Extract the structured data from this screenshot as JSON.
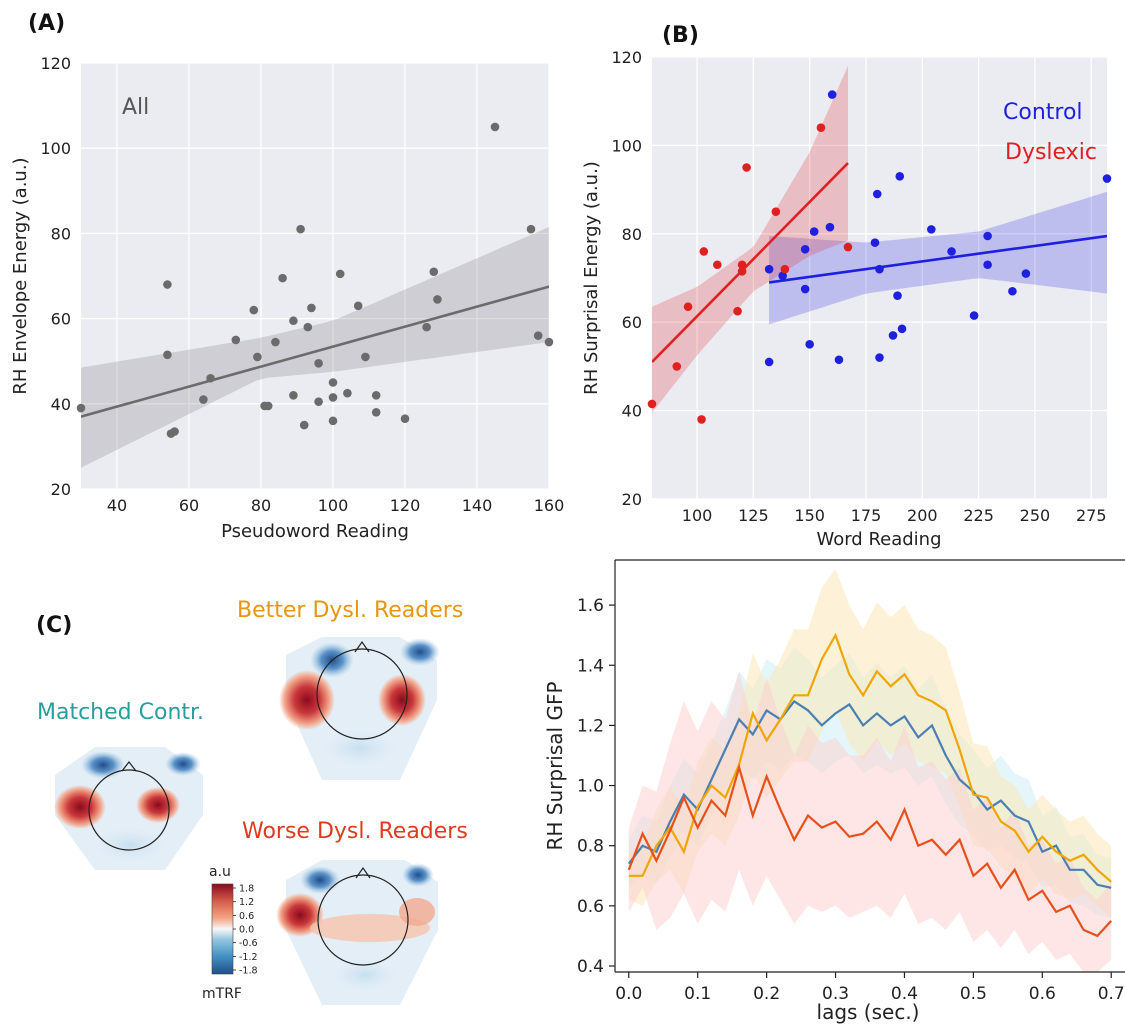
{
  "panels": {
    "a_label": "(A)",
    "b_label": "(B)",
    "c_label": "(C)"
  },
  "chart_data": [
    {
      "id": "A",
      "type": "scatter",
      "xlabel": "Pseudoword Reading",
      "ylabel": "RH Envelope Energy (a.u.)",
      "xlim": [
        30,
        160
      ],
      "ylim": [
        20,
        120
      ],
      "xticks": [
        40,
        60,
        80,
        100,
        120,
        140,
        160
      ],
      "yticks": [
        20,
        40,
        60,
        80,
        100,
        120
      ],
      "grid": true,
      "annotation": "All",
      "series": [
        {
          "color": "#6b6b6b",
          "points": [
            [
              30,
              39
            ],
            [
              54,
              68
            ],
            [
              54,
              51.5
            ],
            [
              55,
              33
            ],
            [
              56,
              33.5
            ],
            [
              64,
              41
            ],
            [
              66,
              46
            ],
            [
              73,
              55
            ],
            [
              78,
              62
            ],
            [
              79,
              51
            ],
            [
              81,
              39.5
            ],
            [
              82,
              39.5
            ],
            [
              84,
              54.5
            ],
            [
              86,
              69.5
            ],
            [
              89,
              59.5
            ],
            [
              89,
              42
            ],
            [
              91,
              81
            ],
            [
              92,
              35
            ],
            [
              93,
              58
            ],
            [
              94,
              62.5
            ],
            [
              96,
              49.5
            ],
            [
              96,
              40.5
            ],
            [
              100,
              45
            ],
            [
              100,
              41.5
            ],
            [
              100,
              36
            ],
            [
              102,
              70.5
            ],
            [
              104,
              42.5
            ],
            [
              107,
              63
            ],
            [
              109,
              51
            ],
            [
              112,
              42
            ],
            [
              112,
              38
            ],
            [
              120,
              36.5
            ],
            [
              126,
              58
            ],
            [
              128,
              71
            ],
            [
              129,
              64.5
            ],
            [
              145,
              105
            ],
            [
              155,
              81
            ],
            [
              157,
              56
            ],
            [
              160,
              54.5
            ]
          ],
          "fit": {
            "x": [
              30,
              160
            ],
            "y": [
              37,
              67.5
            ]
          },
          "ci": {
            "x": [
              30,
              80,
              100,
              160
            ],
            "upper": [
              48.5,
              55.5,
              59.5,
              81.5
            ],
            "lower": [
              25,
              46,
              47.5,
              54.5
            ]
          }
        }
      ]
    },
    {
      "id": "B",
      "type": "scatter",
      "xlabel": "Word Reading",
      "ylabel": "RH Surprisal Energy (a.u.)",
      "xlim": [
        80,
        282
      ],
      "ylim": [
        20,
        120
      ],
      "xticks": [
        100,
        125,
        150,
        175,
        200,
        225,
        250,
        275
      ],
      "yticks": [
        20,
        40,
        60,
        80,
        100,
        120
      ],
      "grid": true,
      "series": [
        {
          "name": "Control",
          "color": "#1f1fe0",
          "points": [
            [
              132,
              72
            ],
            [
              132,
              51
            ],
            [
              138,
              70.5
            ],
            [
              148,
              67.5
            ],
            [
              148,
              76.5
            ],
            [
              150,
              55
            ],
            [
              152,
              80.5
            ],
            [
              159,
              81.5
            ],
            [
              160,
              111.5
            ],
            [
              163,
              51.5
            ],
            [
              179,
              78
            ],
            [
              180,
              89
            ],
            [
              181,
              72
            ],
            [
              181,
              52
            ],
            [
              187,
              57
            ],
            [
              189,
              66
            ],
            [
              190,
              93
            ],
            [
              191,
              58.5
            ],
            [
              204,
              81
            ],
            [
              213,
              76
            ],
            [
              223,
              61.5
            ],
            [
              229,
              79.5
            ],
            [
              229,
              73
            ],
            [
              240,
              67
            ],
            [
              246,
              71
            ],
            [
              282,
              92.5
            ]
          ],
          "fit": {
            "x": [
              132,
              282
            ],
            "y": [
              69,
              79.5
            ]
          },
          "ci": {
            "x": [
              132,
              175,
              225,
              282
            ],
            "upper": [
              79.5,
              78,
              80.5,
              89.5
            ],
            "lower": [
              59.5,
              66.5,
              70,
              66.5
            ]
          }
        },
        {
          "name": "Dyslexic",
          "color": "#e02020",
          "points": [
            [
              80,
              41.5
            ],
            [
              91,
              50
            ],
            [
              96,
              63.5
            ],
            [
              102,
              38
            ],
            [
              103,
              76
            ],
            [
              109,
              73
            ],
            [
              118,
              62.5
            ],
            [
              120,
              73
            ],
            [
              120,
              71.5
            ],
            [
              122,
              95
            ],
            [
              135,
              85
            ],
            [
              139,
              72
            ],
            [
              155,
              104
            ],
            [
              167,
              77
            ]
          ],
          "fit": {
            "x": [
              80,
              167
            ],
            "y": [
              51,
              96
            ]
          },
          "ci": {
            "x": [
              80,
              100,
              125,
              150,
              167
            ],
            "upper": [
              63.5,
              68,
              77,
              98.5,
              118
            ],
            "lower": [
              39.5,
              52.5,
              67,
              75,
              78.5
            ]
          }
        }
      ]
    },
    {
      "id": "C-right",
      "type": "line",
      "xlabel": "lags (sec.)",
      "ylabel": "RH Surprisal GFP",
      "xlim": [
        -0.02,
        0.72
      ],
      "ylim": [
        0.38,
        1.75
      ],
      "xticks": [
        "0.0",
        "0.1",
        "0.2",
        "0.3",
        "0.4",
        "0.5",
        "0.6",
        "0.7"
      ],
      "yticks": [
        "0.4",
        "0.6",
        "0.8",
        "1.0",
        "1.2",
        "1.4",
        "1.6"
      ],
      "grid": false,
      "series": [
        {
          "name": "Matched Contr.",
          "color": "#4a7fb5",
          "band": "#cfeef5",
          "x": [
            0,
            0.02,
            0.04,
            0.06,
            0.08,
            0.1,
            0.12,
            0.14,
            0.16,
            0.18,
            0.2,
            0.22,
            0.24,
            0.26,
            0.28,
            0.3,
            0.32,
            0.34,
            0.36,
            0.38,
            0.4,
            0.42,
            0.44,
            0.46,
            0.48,
            0.5,
            0.52,
            0.54,
            0.56,
            0.58,
            0.6,
            0.62,
            0.64,
            0.66,
            0.68,
            0.7
          ],
          "y": [
            0.74,
            0.8,
            0.78,
            0.88,
            0.97,
            0.92,
            1.02,
            1.12,
            1.22,
            1.17,
            1.25,
            1.22,
            1.28,
            1.25,
            1.2,
            1.24,
            1.27,
            1.2,
            1.24,
            1.2,
            1.23,
            1.16,
            1.2,
            1.1,
            1.02,
            0.98,
            0.92,
            0.95,
            0.9,
            0.88,
            0.78,
            0.8,
            0.72,
            0.72,
            0.67,
            0.66
          ],
          "lower": [
            0.66,
            0.7,
            0.68,
            0.76,
            0.85,
            0.8,
            0.9,
            0.99,
            1.06,
            1.02,
            1.08,
            1.05,
            1.1,
            1.08,
            1.04,
            1.08,
            1.1,
            1.04,
            1.07,
            1.04,
            1.06,
            1.0,
            1.03,
            0.94,
            0.87,
            0.84,
            0.78,
            0.8,
            0.76,
            0.74,
            0.66,
            0.67,
            0.61,
            0.6,
            0.57,
            0.56
          ],
          "upper": [
            0.82,
            0.9,
            0.88,
            1.0,
            1.09,
            1.04,
            1.14,
            1.25,
            1.38,
            1.32,
            1.42,
            1.39,
            1.46,
            1.42,
            1.36,
            1.4,
            1.44,
            1.36,
            1.41,
            1.36,
            1.4,
            1.32,
            1.37,
            1.26,
            1.17,
            1.12,
            1.06,
            1.1,
            1.04,
            1.02,
            0.9,
            0.93,
            0.83,
            0.84,
            0.77,
            0.76
          ]
        },
        {
          "name": "Better Dysl. Readers",
          "color": "#f0a500",
          "band": "#fbe7b8",
          "x": [
            0,
            0.02,
            0.04,
            0.06,
            0.08,
            0.1,
            0.12,
            0.14,
            0.16,
            0.18,
            0.2,
            0.22,
            0.24,
            0.26,
            0.28,
            0.3,
            0.32,
            0.34,
            0.36,
            0.38,
            0.4,
            0.42,
            0.44,
            0.46,
            0.48,
            0.5,
            0.52,
            0.54,
            0.56,
            0.58,
            0.6,
            0.62,
            0.64,
            0.66,
            0.68,
            0.7
          ],
          "y": [
            0.7,
            0.7,
            0.8,
            0.86,
            0.78,
            0.93,
            1.0,
            0.96,
            1.07,
            1.24,
            1.15,
            1.22,
            1.3,
            1.3,
            1.42,
            1.5,
            1.37,
            1.3,
            1.38,
            1.33,
            1.37,
            1.3,
            1.28,
            1.25,
            1.12,
            0.97,
            0.96,
            0.88,
            0.85,
            0.78,
            0.83,
            0.78,
            0.75,
            0.77,
            0.72,
            0.68
          ],
          "lower": [
            0.62,
            0.6,
            0.68,
            0.72,
            0.64,
            0.78,
            0.84,
            0.8,
            0.9,
            1.04,
            0.96,
            1.02,
            1.08,
            1.08,
            1.18,
            1.25,
            1.14,
            1.08,
            1.15,
            1.1,
            1.14,
            1.08,
            1.06,
            1.04,
            0.93,
            0.8,
            0.79,
            0.73,
            0.7,
            0.64,
            0.69,
            0.64,
            0.62,
            0.64,
            0.6,
            0.56
          ],
          "upper": [
            0.78,
            0.8,
            0.92,
            1.0,
            0.92,
            1.08,
            1.16,
            1.12,
            1.24,
            1.44,
            1.34,
            1.42,
            1.52,
            1.52,
            1.66,
            1.72,
            1.6,
            1.52,
            1.61,
            1.56,
            1.6,
            1.52,
            1.5,
            1.46,
            1.31,
            1.14,
            1.13,
            1.03,
            1.0,
            0.92,
            0.97,
            0.92,
            0.88,
            0.9,
            0.84,
            0.8
          ]
        },
        {
          "name": "Worse Dysl. Readers",
          "color": "#e8501a",
          "band": "#fbd2cf",
          "x": [
            0,
            0.02,
            0.04,
            0.06,
            0.08,
            0.1,
            0.12,
            0.14,
            0.16,
            0.18,
            0.2,
            0.22,
            0.24,
            0.26,
            0.28,
            0.3,
            0.32,
            0.34,
            0.36,
            0.38,
            0.4,
            0.42,
            0.44,
            0.46,
            0.48,
            0.5,
            0.52,
            0.54,
            0.56,
            0.58,
            0.6,
            0.62,
            0.64,
            0.66,
            0.68,
            0.7
          ],
          "y": [
            0.72,
            0.84,
            0.75,
            0.85,
            0.96,
            0.86,
            0.95,
            0.9,
            1.06,
            0.9,
            1.03,
            0.92,
            0.82,
            0.9,
            0.86,
            0.88,
            0.83,
            0.84,
            0.88,
            0.82,
            0.92,
            0.8,
            0.82,
            0.77,
            0.82,
            0.7,
            0.74,
            0.66,
            0.72,
            0.62,
            0.65,
            0.58,
            0.6,
            0.52,
            0.5,
            0.55
          ],
          "lower": [
            0.58,
            0.66,
            0.52,
            0.56,
            0.64,
            0.54,
            0.62,
            0.58,
            0.72,
            0.6,
            0.7,
            0.62,
            0.54,
            0.6,
            0.58,
            0.6,
            0.56,
            0.58,
            0.6,
            0.56,
            0.64,
            0.54,
            0.56,
            0.52,
            0.58,
            0.48,
            0.52,
            0.46,
            0.52,
            0.44,
            0.48,
            0.42,
            0.44,
            0.38,
            0.38,
            0.42
          ],
          "upper": [
            0.86,
            1.0,
            0.98,
            1.14,
            1.28,
            1.18,
            1.28,
            1.22,
            1.38,
            1.2,
            1.36,
            1.22,
            1.1,
            1.2,
            1.14,
            1.16,
            1.1,
            1.1,
            1.16,
            1.08,
            1.2,
            1.06,
            1.08,
            1.02,
            1.06,
            0.92,
            0.96,
            0.86,
            0.92,
            0.8,
            0.82,
            0.74,
            0.76,
            0.66,
            0.62,
            0.68
          ]
        }
      ]
    }
  ],
  "topomaps": {
    "labels": {
      "control": "Matched Contr.",
      "better": "Better Dysl. Readers",
      "worse": "Worse Dysl. Readers"
    },
    "label_colors": {
      "control": "#2a9d9d",
      "better": "#e8950f",
      "worse": "#e03a1e"
    },
    "colorbar": {
      "title": "a.u",
      "unit": "mTRF",
      "ticks": [
        "1.8",
        "1.2",
        "0.6",
        "0.0",
        "-0.6",
        "-1.2",
        "-1.8"
      ],
      "colors": [
        "#8b0a1e",
        "#d6604d",
        "#f4a582",
        "#f7f7f7",
        "#92c5de",
        "#4393c3",
        "#1f4e8c"
      ]
    }
  }
}
